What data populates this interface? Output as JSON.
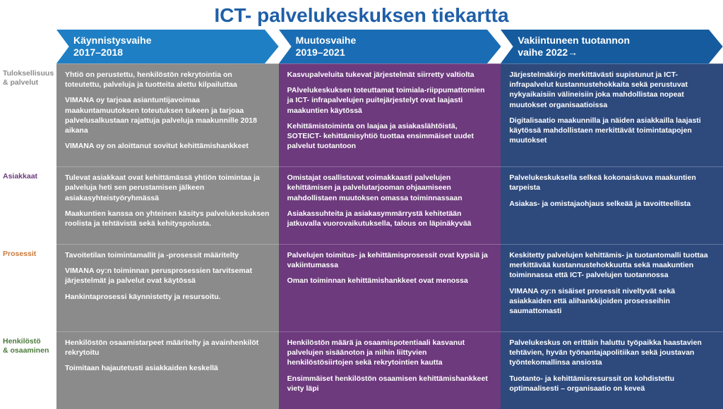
{
  "title": "ICT- palvelukeskuksen tiekartta",
  "title_color": "#1f5fa8",
  "phases": [
    {
      "label": "Käynnistysvaihe\n2017–2018",
      "fill": "#1f7fc4"
    },
    {
      "label": "Muutosvaihe\n2019–2021",
      "fill": "#1a6db5"
    },
    {
      "label": "Vakiintuneen tuotannon\nvaihe 2022→",
      "fill": "#155b9e"
    }
  ],
  "row_labels": [
    {
      "text": "Tuloksellisuus\n& palvelut",
      "color": "#8b8b8b"
    },
    {
      "text": "Asiakkaat",
      "color": "#6d3a7d"
    },
    {
      "text": "Prosessit",
      "color": "#c97a3a"
    },
    {
      "text": "Henkilöstö\n& osaaminen",
      "color": "#4a7a3a"
    }
  ],
  "columns": {
    "col1_bg": "#8b8b8b",
    "col2_bg": "#6d3a7d",
    "col3_bg": "#2e4a7d"
  },
  "cells": {
    "r1c1": [
      "Yhtiö on perustettu, henkilöstön rekrytointia on toteutettu, palveluja ja tuotteita alettu kilpailuttaa",
      "VIMANA oy tarjoaa asiantuntijavoimaa maakuntamuutoksen toteutuksen tukeen ja tarjoaa palvelusalkustaan rajattuja palveluja maakunnille 2018 aikana",
      "VIMANA oy on aloittanut sovitut kehittämishankkeet"
    ],
    "r1c2": [
      "Kasvupalveluita tukevat järjestelmät siirretty valtiolta",
      "PAlvelukeskuksen toteuttamat toimiala-riippumattomien ja ICT- infrapalvelujen puitejärjestelyt ovat laajasti maakuntien käytössä",
      "Kehittämistoiminta on laajaa ja asiakaslähtöistä, SOTEICT- kehittämisyhtiö tuottaa ensimmäiset uudet palvelut tuotantoon"
    ],
    "r1c3": [
      "Järjestelmäkirjo merkittävästi supistunut ja ICT-infrapalvelut kustannustehokkaita sekä perustuvat nykyaikaisiin välineisiin joka mahdollistaa nopeat muutokset organisaatioissa",
      "Digitalisaatio maakunnilla ja näiden asiakkailla laajasti käytössä mahdollistaen merkittävät toimintatapojen muutokset"
    ],
    "r2c1": [
      "Tulevat asiakkaat ovat kehittämässä yhtiön toimintaa ja palveluja heti sen perustamisen jälkeen asiakasyhteistyöryhmässä",
      "Maakuntien kanssa on yhteinen käsitys palvelukeskuksen roolista ja tehtävistä sekä kehityspolusta."
    ],
    "r2c2": [
      "Omistajat osallistuvat voimakkaasti palvelujen kehittämisen ja palvelutarjooman ohjaamiseen mahdollistaen muutoksen omassa toiminnassaan",
      "Asiakassuhteita ja asiakasymmärrystä kehitetään jatkuvalla vuorovaikutuksella, talous on läpinäkyvää"
    ],
    "r2c3": [
      "Palvelukeskuksella selkeä kokonaiskuva maakuntien tarpeista",
      "Asiakas- ja omistajaohjaus selkeää ja tavoitteellista"
    ],
    "r3c1": [
      "Tavoitetilan toimintamallit ja -prosessit määritelty",
      "VIMANA oy:n toiminnan perusprosessien tarvitsemat järjestelmät ja palvelut ovat käytössä",
      "Hankintaprosessi käynnistetty ja resursoitu."
    ],
    "r3c2": [
      "Palvelujen toimitus- ja kehittämisprosessit ovat kypsiä ja vakiintumassa",
      "Oman toiminnan kehittämishankkeet ovat menossa"
    ],
    "r3c3": [
      "Keskitetty palvelujen kehittämis- ja tuotantomalli tuottaa merkittävää kustannustehokkuutta sekä maakuntien toiminnassa että ICT- palvelujen tuotannossa",
      "VIMANA oy:n sisäiset prosessit niveltyvät sekä asiakkaiden että alihankkijoiden prosesseihin saumattomasti"
    ],
    "r4c1": [
      "Henkilöstön osaamistarpeet määritelty ja avainhenkilöt rekrytoitu",
      "Toimitaan hajautetusti asiakkaiden keskellä"
    ],
    "r4c2": [
      "Henkilöstön määrä ja osaamispotentiaali kasvanut palvelujen sisäänoton ja niihin liittyvien henkilöstösiirtojen sekä rekrytointien kautta",
      "Ensimmäiset henkilöstön osaamisen kehittämishankkeet viety läpi"
    ],
    "r4c3": [
      "Palvelukeskus on erittäin haluttu työpaikka haastavien tehtävien, hyvän työnantajapolitiikan sekä joustavan työntekomallinsa ansiosta",
      "Tuotanto- ja kehittämisresurssit on kohdistettu optimaalisesti – organisaatio on keveä"
    ]
  }
}
